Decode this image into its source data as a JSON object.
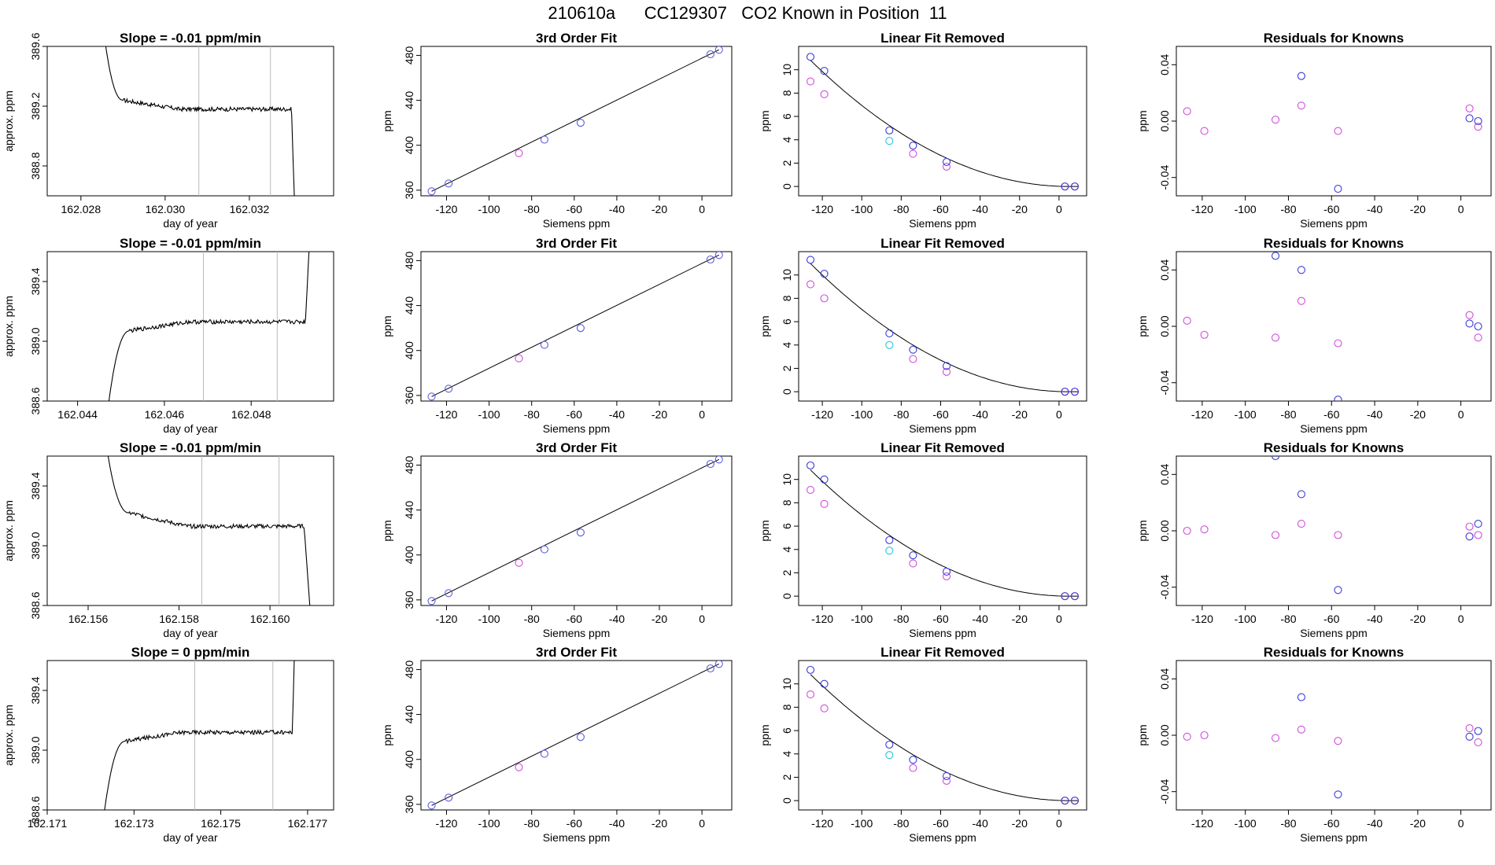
{
  "page": {
    "title": "210610a      CC129307   CO2 Known in Position  11"
  },
  "labels": {
    "trace_ylabel": "approx. ppm",
    "trace_xlabel": "day of year",
    "fit_title": "3rd Order Fit",
    "fit_ylabel": "ppm",
    "siemens_xlabel": "Siemens ppm",
    "lin_title": "Linear Fit Removed",
    "resid_title": "Residuals for Knowns"
  },
  "colors": {
    "axis": "#000000",
    "line": "#000000",
    "trace_spike": "#ff6666",
    "vline": "#bbbbbb",
    "blue": "#3b3bd8",
    "magenta": "#d24ddc",
    "cyan": "#26c6d9",
    "fit_point": "#5d5de0"
  },
  "chart_data": [
    {
      "row": 1,
      "type": "line",
      "title": "Slope =  -0.01  ppm/min",
      "xlabel": "day of year",
      "ylabel": "approx. ppm",
      "xlim": [
        162.0272,
        162.034
      ],
      "ylim": [
        388.6,
        389.6
      ],
      "xticks": [
        162.028,
        162.03,
        162.032
      ],
      "yticks": [
        388.8,
        389.2,
        389.6
      ],
      "vlines": [
        162.0308,
        162.0325
      ],
      "trace": {
        "x_start": 162.0285,
        "x_plateau": 162.029,
        "x_drop": 162.033,
        "x_end": 162.0331,
        "start_value": 389.8,
        "plateau_value": 389.24,
        "level": 389.18,
        "end_value": 388.3,
        "noise": 0.014
      }
    },
    {
      "row": 1,
      "type": "scatter",
      "title": "3rd Order Fit",
      "xlabel": "Siemens ppm",
      "ylabel": "ppm",
      "xlim": [
        -132,
        14
      ],
      "ylim": [
        355,
        488
      ],
      "xticks": [
        -120,
        -100,
        -80,
        -60,
        -40,
        -20,
        0
      ],
      "yticks": [
        360,
        400,
        440,
        480
      ],
      "points": [
        [
          -127,
          359
        ],
        [
          -119,
          366
        ],
        [
          -86,
          393
        ],
        [
          -74,
          405
        ],
        [
          -57,
          420
        ],
        [
          4,
          481
        ],
        [
          8,
          485
        ]
      ],
      "fit_line": [
        [
          -127,
          359
        ],
        [
          8,
          485
        ]
      ]
    },
    {
      "row": 1,
      "type": "scatter",
      "title": "Linear Fit Removed",
      "xlabel": "Siemens ppm",
      "ylabel": "ppm",
      "xlim": [
        -132,
        14
      ],
      "ylim": [
        -0.8,
        12
      ],
      "xticks": [
        -120,
        -100,
        -80,
        -60,
        -40,
        -20,
        0
      ],
      "yticks": [
        0,
        2,
        4,
        6,
        8,
        10
      ],
      "blue_points": [
        [
          -126,
          11.1
        ],
        [
          -119,
          9.9
        ],
        [
          -86,
          4.8
        ],
        [
          -74,
          3.5
        ],
        [
          -57,
          2.1
        ],
        [
          3,
          0
        ],
        [
          8,
          0
        ]
      ],
      "magenta_points": [
        [
          -126,
          9.0
        ],
        [
          -119,
          7.9
        ],
        [
          -74,
          2.8
        ],
        [
          -57,
          1.7
        ],
        [
          3,
          0
        ],
        [
          8,
          0
        ]
      ],
      "cyan_points": [
        [
          -86,
          3.9
        ]
      ],
      "curve": {
        "vertex_x": 5,
        "a": 0.00063
      }
    },
    {
      "row": 1,
      "type": "scatter",
      "title": "Residuals for Knowns",
      "xlabel": "Siemens ppm",
      "ylabel": "ppm",
      "xlim": [
        -132,
        14
      ],
      "ylim": [
        -0.053,
        0.053
      ],
      "xticks": [
        -120,
        -100,
        -80,
        -60,
        -40,
        -20,
        0
      ],
      "yticks": [
        -0.04,
        0.0,
        0.04
      ],
      "blue_points": [
        [
          -74,
          0.032
        ],
        [
          -57,
          -0.048
        ],
        [
          4,
          0.002
        ],
        [
          8,
          0.0
        ]
      ],
      "magenta_points": [
        [
          -127,
          0.007
        ],
        [
          -119,
          -0.007
        ],
        [
          -86,
          0.001
        ],
        [
          -74,
          0.011
        ],
        [
          -57,
          -0.007
        ],
        [
          4,
          0.009
        ],
        [
          8,
          -0.004
        ]
      ]
    },
    {
      "row": 2,
      "type": "line",
      "title": "Slope =  -0.01  ppm/min",
      "xlabel": "day of year",
      "ylabel": "approx. ppm",
      "xlim": [
        162.0433,
        162.0499
      ],
      "ylim": [
        388.6,
        389.6
      ],
      "xticks": [
        162.044,
        162.046,
        162.048
      ],
      "yticks": [
        388.6,
        389.0,
        389.4
      ],
      "vlines": [
        162.0469,
        162.0486
      ],
      "trace": {
        "x_start": 162.0447,
        "x_plateau": 162.0452,
        "x_drop": 162.04925,
        "x_end": 162.04935,
        "start_value": 388.55,
        "plateau_value": 389.07,
        "level": 389.13,
        "end_value": 389.7,
        "noise": 0.014
      }
    },
    {
      "row": 2,
      "type": "scatter",
      "title": "3rd Order Fit",
      "xlabel": "Siemens ppm",
      "ylabel": "ppm",
      "xlim": [
        -132,
        14
      ],
      "ylim": [
        355,
        488
      ],
      "xticks": [
        -120,
        -100,
        -80,
        -60,
        -40,
        -20,
        0
      ],
      "yticks": [
        360,
        400,
        440,
        480
      ],
      "points": [
        [
          -127,
          359
        ],
        [
          -119,
          366
        ],
        [
          -86,
          393
        ],
        [
          -74,
          405
        ],
        [
          -57,
          420
        ],
        [
          4,
          481
        ],
        [
          8,
          485
        ]
      ],
      "fit_line": [
        [
          -127,
          359
        ],
        [
          8,
          485
        ]
      ]
    },
    {
      "row": 2,
      "type": "scatter",
      "title": "Linear Fit Removed",
      "xlabel": "Siemens ppm",
      "ylabel": "ppm",
      "xlim": [
        -132,
        14
      ],
      "ylim": [
        -0.8,
        12
      ],
      "xticks": [
        -120,
        -100,
        -80,
        -60,
        -40,
        -20,
        0
      ],
      "yticks": [
        0,
        2,
        4,
        6,
        8,
        10
      ],
      "blue_points": [
        [
          -126,
          11.3
        ],
        [
          -119,
          10.1
        ],
        [
          -86,
          5.0
        ],
        [
          -74,
          3.6
        ],
        [
          -57,
          2.2
        ],
        [
          3,
          0
        ],
        [
          8,
          0
        ]
      ],
      "magenta_points": [
        [
          -126,
          9.2
        ],
        [
          -119,
          8.0
        ],
        [
          -74,
          2.8
        ],
        [
          -57,
          1.7
        ],
        [
          3,
          0
        ],
        [
          8,
          0
        ]
      ],
      "cyan_points": [
        [
          -86,
          4.0
        ]
      ],
      "curve": {
        "vertex_x": 5,
        "a": 0.00064
      }
    },
    {
      "row": 2,
      "type": "scatter",
      "title": "Residuals for Knowns",
      "xlabel": "Siemens ppm",
      "ylabel": "ppm",
      "xlim": [
        -132,
        14
      ],
      "ylim": [
        -0.053,
        0.053
      ],
      "xticks": [
        -120,
        -100,
        -80,
        -60,
        -40,
        -20,
        0
      ],
      "yticks": [
        -0.04,
        0.0,
        0.04
      ],
      "blue_points": [
        [
          -86,
          0.05
        ],
        [
          -74,
          0.04
        ],
        [
          -57,
          -0.052
        ],
        [
          4,
          0.002
        ],
        [
          8,
          0.0
        ]
      ],
      "magenta_points": [
        [
          -127,
          0.004
        ],
        [
          -119,
          -0.006
        ],
        [
          -86,
          -0.008
        ],
        [
          -74,
          0.018
        ],
        [
          -57,
          -0.012
        ],
        [
          4,
          0.008
        ],
        [
          8,
          -0.008
        ]
      ]
    },
    {
      "row": 3,
      "type": "line",
      "title": "Slope =  -0.01  ppm/min",
      "xlabel": "day of year",
      "ylabel": "approx. ppm",
      "xlim": [
        162.1551,
        162.1614
      ],
      "ylim": [
        388.6,
        389.6
      ],
      "xticks": [
        162.156,
        162.158,
        162.16
      ],
      "yticks": [
        388.6,
        389.0,
        389.4
      ],
      "vlines": [
        162.1585,
        162.1602
      ],
      "trace": {
        "x_start": 162.1563,
        "x_plateau": 162.1569,
        "x_drop": 162.16075,
        "x_end": 162.1609,
        "start_value": 389.9,
        "plateau_value": 389.22,
        "level": 389.13,
        "end_value": 388.5,
        "noise": 0.014
      }
    },
    {
      "row": 3,
      "type": "scatter",
      "title": "3rd Order Fit",
      "xlabel": "Siemens ppm",
      "ylabel": "ppm",
      "xlim": [
        -132,
        14
      ],
      "ylim": [
        355,
        488
      ],
      "xticks": [
        -120,
        -100,
        -80,
        -60,
        -40,
        -20,
        0
      ],
      "yticks": [
        360,
        400,
        440,
        480
      ],
      "points": [
        [
          -127,
          359
        ],
        [
          -119,
          366
        ],
        [
          -86,
          393
        ],
        [
          -74,
          405
        ],
        [
          -57,
          420
        ],
        [
          4,
          481
        ],
        [
          8,
          485
        ]
      ],
      "fit_line": [
        [
          -127,
          359
        ],
        [
          8,
          485
        ]
      ]
    },
    {
      "row": 3,
      "type": "scatter",
      "title": "Linear Fit Removed",
      "xlabel": "Siemens ppm",
      "ylabel": "ppm",
      "xlim": [
        -132,
        14
      ],
      "ylim": [
        -0.8,
        12
      ],
      "xticks": [
        -120,
        -100,
        -80,
        -60,
        -40,
        -20,
        0
      ],
      "yticks": [
        0,
        2,
        4,
        6,
        8,
        10
      ],
      "blue_points": [
        [
          -126,
          11.2
        ],
        [
          -119,
          10.0
        ],
        [
          -86,
          4.8
        ],
        [
          -74,
          3.5
        ],
        [
          -57,
          2.1
        ],
        [
          3,
          0
        ],
        [
          8,
          0
        ]
      ],
      "magenta_points": [
        [
          -126,
          9.1
        ],
        [
          -119,
          7.9
        ],
        [
          -74,
          2.8
        ],
        [
          -57,
          1.7
        ],
        [
          3,
          0
        ],
        [
          8,
          0
        ]
      ],
      "cyan_points": [
        [
          -86,
          3.9
        ]
      ],
      "curve": {
        "vertex_x": 5,
        "a": 0.00063
      }
    },
    {
      "row": 3,
      "type": "scatter",
      "title": "Residuals for Knowns",
      "xlabel": "Siemens ppm",
      "ylabel": "ppm",
      "xlim": [
        -132,
        14
      ],
      "ylim": [
        -0.053,
        0.053
      ],
      "xticks": [
        -120,
        -100,
        -80,
        -60,
        -40,
        -20,
        0
      ],
      "yticks": [
        -0.04,
        0.0,
        0.04
      ],
      "blue_points": [
        [
          -86,
          0.053
        ],
        [
          -74,
          0.026
        ],
        [
          -57,
          -0.042
        ],
        [
          4,
          -0.004
        ],
        [
          8,
          0.005
        ]
      ],
      "magenta_points": [
        [
          -127,
          0.0
        ],
        [
          -119,
          0.001
        ],
        [
          -86,
          -0.003
        ],
        [
          -74,
          0.005
        ],
        [
          -57,
          -0.003
        ],
        [
          4,
          0.003
        ],
        [
          8,
          -0.003
        ]
      ]
    },
    {
      "row": 4,
      "type": "line",
      "title": "Slope =  0  ppm/min",
      "xlabel": "day of year",
      "ylabel": "approx. ppm",
      "xlim": [
        162.171,
        162.1776
      ],
      "ylim": [
        388.6,
        389.6
      ],
      "xticks": [
        162.171,
        162.173,
        162.175,
        162.177
      ],
      "yticks": [
        388.6,
        389.0,
        389.4
      ],
      "vlines": [
        162.1744,
        162.1762
      ],
      "trace": {
        "x_start": 162.1723,
        "x_plateau": 162.1728,
        "x_drop": 162.17665,
        "x_end": 162.1767,
        "start_value": 388.55,
        "plateau_value": 389.06,
        "level": 389.12,
        "end_value": 389.7,
        "noise": 0.014
      }
    },
    {
      "row": 4,
      "type": "scatter",
      "title": "3rd Order Fit",
      "xlabel": "Siemens ppm",
      "ylabel": "ppm",
      "xlim": [
        -132,
        14
      ],
      "ylim": [
        355,
        488
      ],
      "xticks": [
        -120,
        -100,
        -80,
        -60,
        -40,
        -20,
        0
      ],
      "yticks": [
        360,
        400,
        440,
        480
      ],
      "points": [
        [
          -127,
          359
        ],
        [
          -119,
          366
        ],
        [
          -86,
          393
        ],
        [
          -74,
          405
        ],
        [
          -57,
          420
        ],
        [
          4,
          481
        ],
        [
          8,
          485
        ]
      ],
      "fit_line": [
        [
          -127,
          359
        ],
        [
          8,
          485
        ]
      ]
    },
    {
      "row": 4,
      "type": "scatter",
      "title": "Linear Fit Removed",
      "xlabel": "Siemens ppm",
      "ylabel": "ppm",
      "xlim": [
        -132,
        14
      ],
      "ylim": [
        -0.8,
        12
      ],
      "xticks": [
        -120,
        -100,
        -80,
        -60,
        -40,
        -20,
        0
      ],
      "yticks": [
        0,
        2,
        4,
        6,
        8,
        10
      ],
      "blue_points": [
        [
          -126,
          11.2
        ],
        [
          -119,
          10.0
        ],
        [
          -86,
          4.8
        ],
        [
          -74,
          3.5
        ],
        [
          -57,
          2.1
        ],
        [
          3,
          0
        ],
        [
          8,
          0
        ]
      ],
      "magenta_points": [
        [
          -126,
          9.1
        ],
        [
          -119,
          7.9
        ],
        [
          -74,
          2.8
        ],
        [
          -57,
          1.7
        ],
        [
          3,
          0
        ],
        [
          8,
          0
        ]
      ],
      "cyan_points": [
        [
          -86,
          3.9
        ]
      ],
      "curve": {
        "vertex_x": 5,
        "a": 0.00063
      }
    },
    {
      "row": 4,
      "type": "scatter",
      "title": "Residuals for Knowns",
      "xlabel": "Siemens ppm",
      "ylabel": "ppm",
      "xlim": [
        -132,
        14
      ],
      "ylim": [
        -0.053,
        0.053
      ],
      "xticks": [
        -120,
        -100,
        -80,
        -60,
        -40,
        -20,
        0
      ],
      "yticks": [
        -0.04,
        0.0,
        0.04
      ],
      "blue_points": [
        [
          -74,
          0.027
        ],
        [
          -57,
          -0.042
        ],
        [
          4,
          -0.001
        ],
        [
          8,
          0.003
        ]
      ],
      "magenta_points": [
        [
          -127,
          -0.001
        ],
        [
          -119,
          0.0
        ],
        [
          -86,
          -0.002
        ],
        [
          -74,
          0.004
        ],
        [
          -57,
          -0.004
        ],
        [
          4,
          0.005
        ],
        [
          8,
          -0.005
        ]
      ]
    }
  ]
}
